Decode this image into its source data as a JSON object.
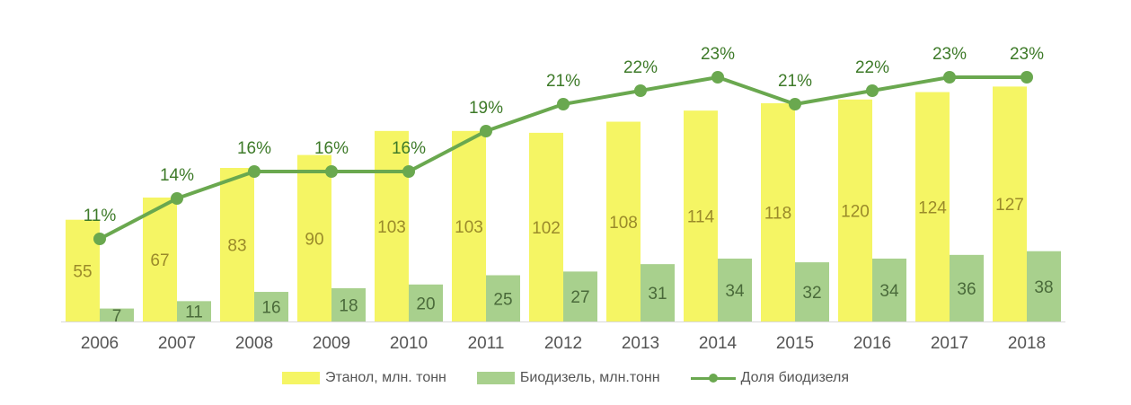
{
  "chart_data": {
    "type": "bar",
    "categories": [
      "2006",
      "2007",
      "2008",
      "2009",
      "2010",
      "2011",
      "2012",
      "2013",
      "2014",
      "2015",
      "2016",
      "2017",
      "2018"
    ],
    "series": [
      {
        "name": "Этанол, млн. тонн",
        "type": "bar",
        "color": "#f5f564",
        "label_color": "#9a8a2a",
        "values": [
          55,
          67,
          83,
          90,
          103,
          103,
          102,
          108,
          114,
          118,
          120,
          124,
          127
        ]
      },
      {
        "name": "Биодизель, млн.тонн",
        "type": "bar",
        "color": "#a8d08d",
        "label_color": "#4a6a3a",
        "values": [
          7,
          11,
          16,
          18,
          20,
          25,
          27,
          31,
          34,
          32,
          34,
          36,
          38
        ]
      },
      {
        "name": "Доля биодизеля",
        "type": "line",
        "color": "#6aa84f",
        "label_color": "#3d7a28",
        "values": [
          11,
          14,
          16,
          16,
          16,
          19,
          21,
          22,
          23,
          21,
          22,
          23,
          23
        ],
        "labels": [
          "11%",
          "14%",
          "16%",
          "16%",
          "16%",
          "19%",
          "21%",
          "22%",
          "23%",
          "21%",
          "22%",
          "23%",
          "23%"
        ]
      }
    ],
    "legend_position": "bottom",
    "grid": false
  }
}
